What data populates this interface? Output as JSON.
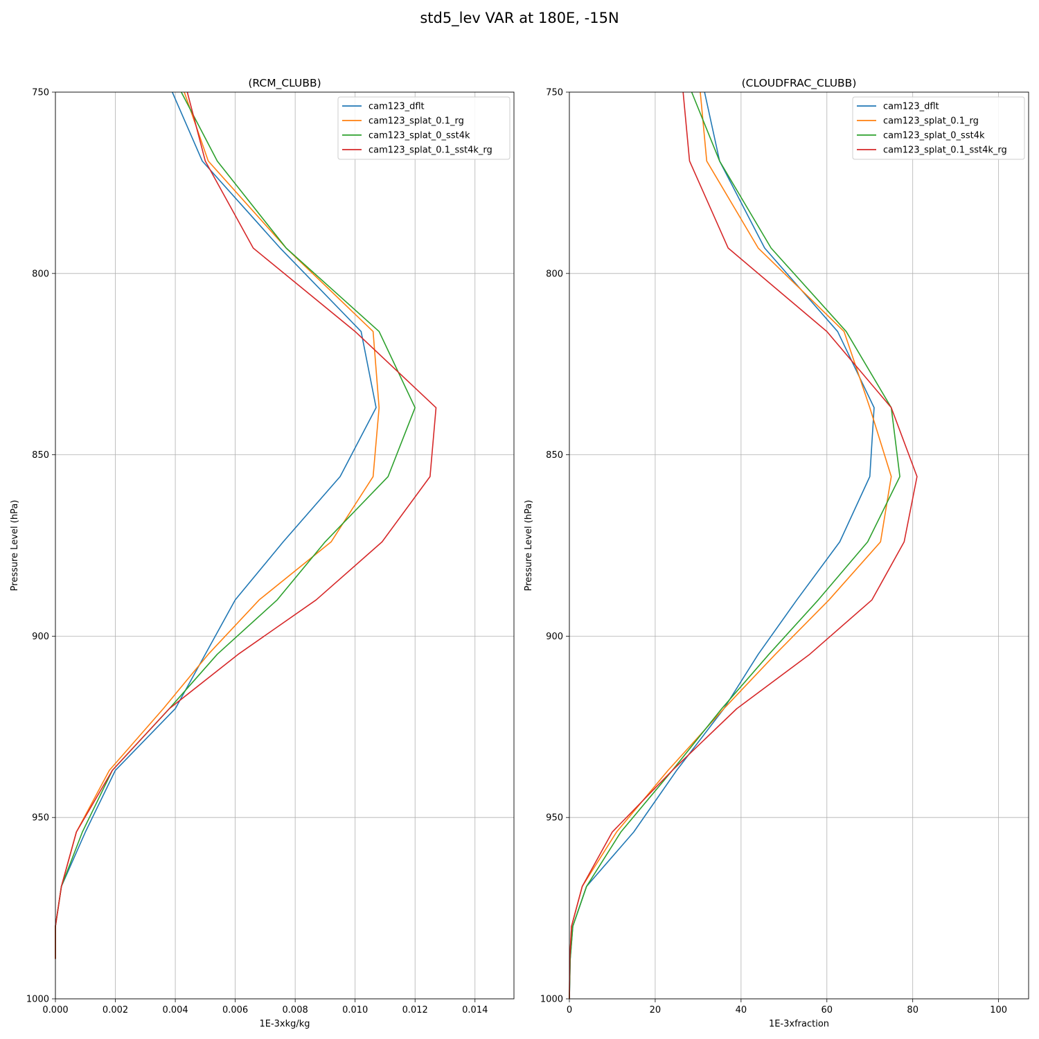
{
  "figure_title": "std5_lev VAR at 180E, -15N",
  "chart_data": [
    {
      "type": "line",
      "title": "(RCM_CLUBB)",
      "xlabel": "1E-3xkg/kg",
      "ylabel": "Pressure Level (hPa)",
      "xlim": [
        0,
        0.0153
      ],
      "ylim": [
        1000,
        750
      ],
      "xticks": [
        "0.000",
        "0.002",
        "0.004",
        "0.006",
        "0.008",
        "0.010",
        "0.012",
        "0.014"
      ],
      "yticks": [
        "750",
        "800",
        "850",
        "900",
        "950",
        "1000"
      ],
      "grid": true,
      "legend": "upper right",
      "y": [
        750,
        769,
        793,
        816,
        837,
        856,
        874,
        890,
        905,
        920,
        937,
        954,
        969,
        980,
        989
      ],
      "series": [
        {
          "name": "cam123_dflt",
          "color": "#1f77b4",
          "values": [
            0.0039,
            0.0049,
            0.0075,
            0.0102,
            0.0107,
            0.0095,
            0.0076,
            0.006,
            0.005,
            0.004,
            0.002,
            0.001,
            0.0002,
            0.0,
            0.0
          ]
        },
        {
          "name": "cam123_splat_0.1_rg",
          "color": "#ff7f0e",
          "values": [
            0.0043,
            0.0051,
            0.0077,
            0.0106,
            0.0108,
            0.0106,
            0.0092,
            0.0068,
            0.0051,
            0.0036,
            0.0018,
            0.0007,
            0.0002,
            0.0,
            0.0
          ]
        },
        {
          "name": "cam123_splat_0_sst4k",
          "color": "#2ca02c",
          "values": [
            0.0042,
            0.0054,
            0.0077,
            0.0108,
            0.012,
            0.0111,
            0.009,
            0.0074,
            0.0054,
            0.0038,
            0.0019,
            0.0009,
            0.0002,
            0.0,
            0.0
          ]
        },
        {
          "name": "cam123_splat_0.1_sst4k_rg",
          "color": "#d62728",
          "values": [
            0.0044,
            0.005,
            0.0066,
            0.01,
            0.0127,
            0.0125,
            0.0109,
            0.0087,
            0.0061,
            0.0038,
            0.0019,
            0.0007,
            0.0002,
            0.0,
            0.0
          ]
        }
      ]
    },
    {
      "type": "line",
      "title": "(CLOUDFRAC_CLUBB)",
      "xlabel": "1E-3xfraction",
      "ylabel": "Pressure Level (hPa)",
      "xlim": [
        0,
        107
      ],
      "ylim": [
        1000,
        750
      ],
      "xticks": [
        "0",
        "20",
        "40",
        "60",
        "80",
        "100"
      ],
      "yticks": [
        "750",
        "800",
        "850",
        "900",
        "950",
        "1000"
      ],
      "grid": true,
      "legend": "upper right",
      "y": [
        750,
        769,
        793,
        816,
        837,
        856,
        874,
        890,
        905,
        920,
        937,
        954,
        969,
        980,
        989,
        1000
      ],
      "series": [
        {
          "name": "cam123_dflt",
          "color": "#1f77b4",
          "values": [
            31.5,
            35,
            45.5,
            62.5,
            71,
            70,
            63,
            53,
            44,
            36,
            25,
            15,
            4,
            0.8,
            0.2,
            0.0
          ]
        },
        {
          "name": "cam123_splat_0.1_rg",
          "color": "#ff7f0e",
          "values": [
            30.5,
            32,
            44,
            64,
            70,
            75,
            72.5,
            60.5,
            48,
            36,
            23,
            11,
            3,
            0.5,
            0.1,
            0.0
          ]
        },
        {
          "name": "cam123_splat_0_sst4k",
          "color": "#2ca02c",
          "values": [
            28.5,
            35,
            47,
            64.5,
            75,
            77,
            69.5,
            58,
            46.5,
            35.5,
            24,
            12,
            4,
            0.8,
            0.2,
            0.0
          ]
        },
        {
          "name": "cam123_splat_0.1_sst4k_rg",
          "color": "#d62728",
          "values": [
            26.5,
            28,
            37,
            60,
            75,
            81,
            78,
            70.5,
            56,
            39,
            24,
            10,
            3,
            0.5,
            0.1,
            0.0
          ]
        }
      ]
    }
  ]
}
